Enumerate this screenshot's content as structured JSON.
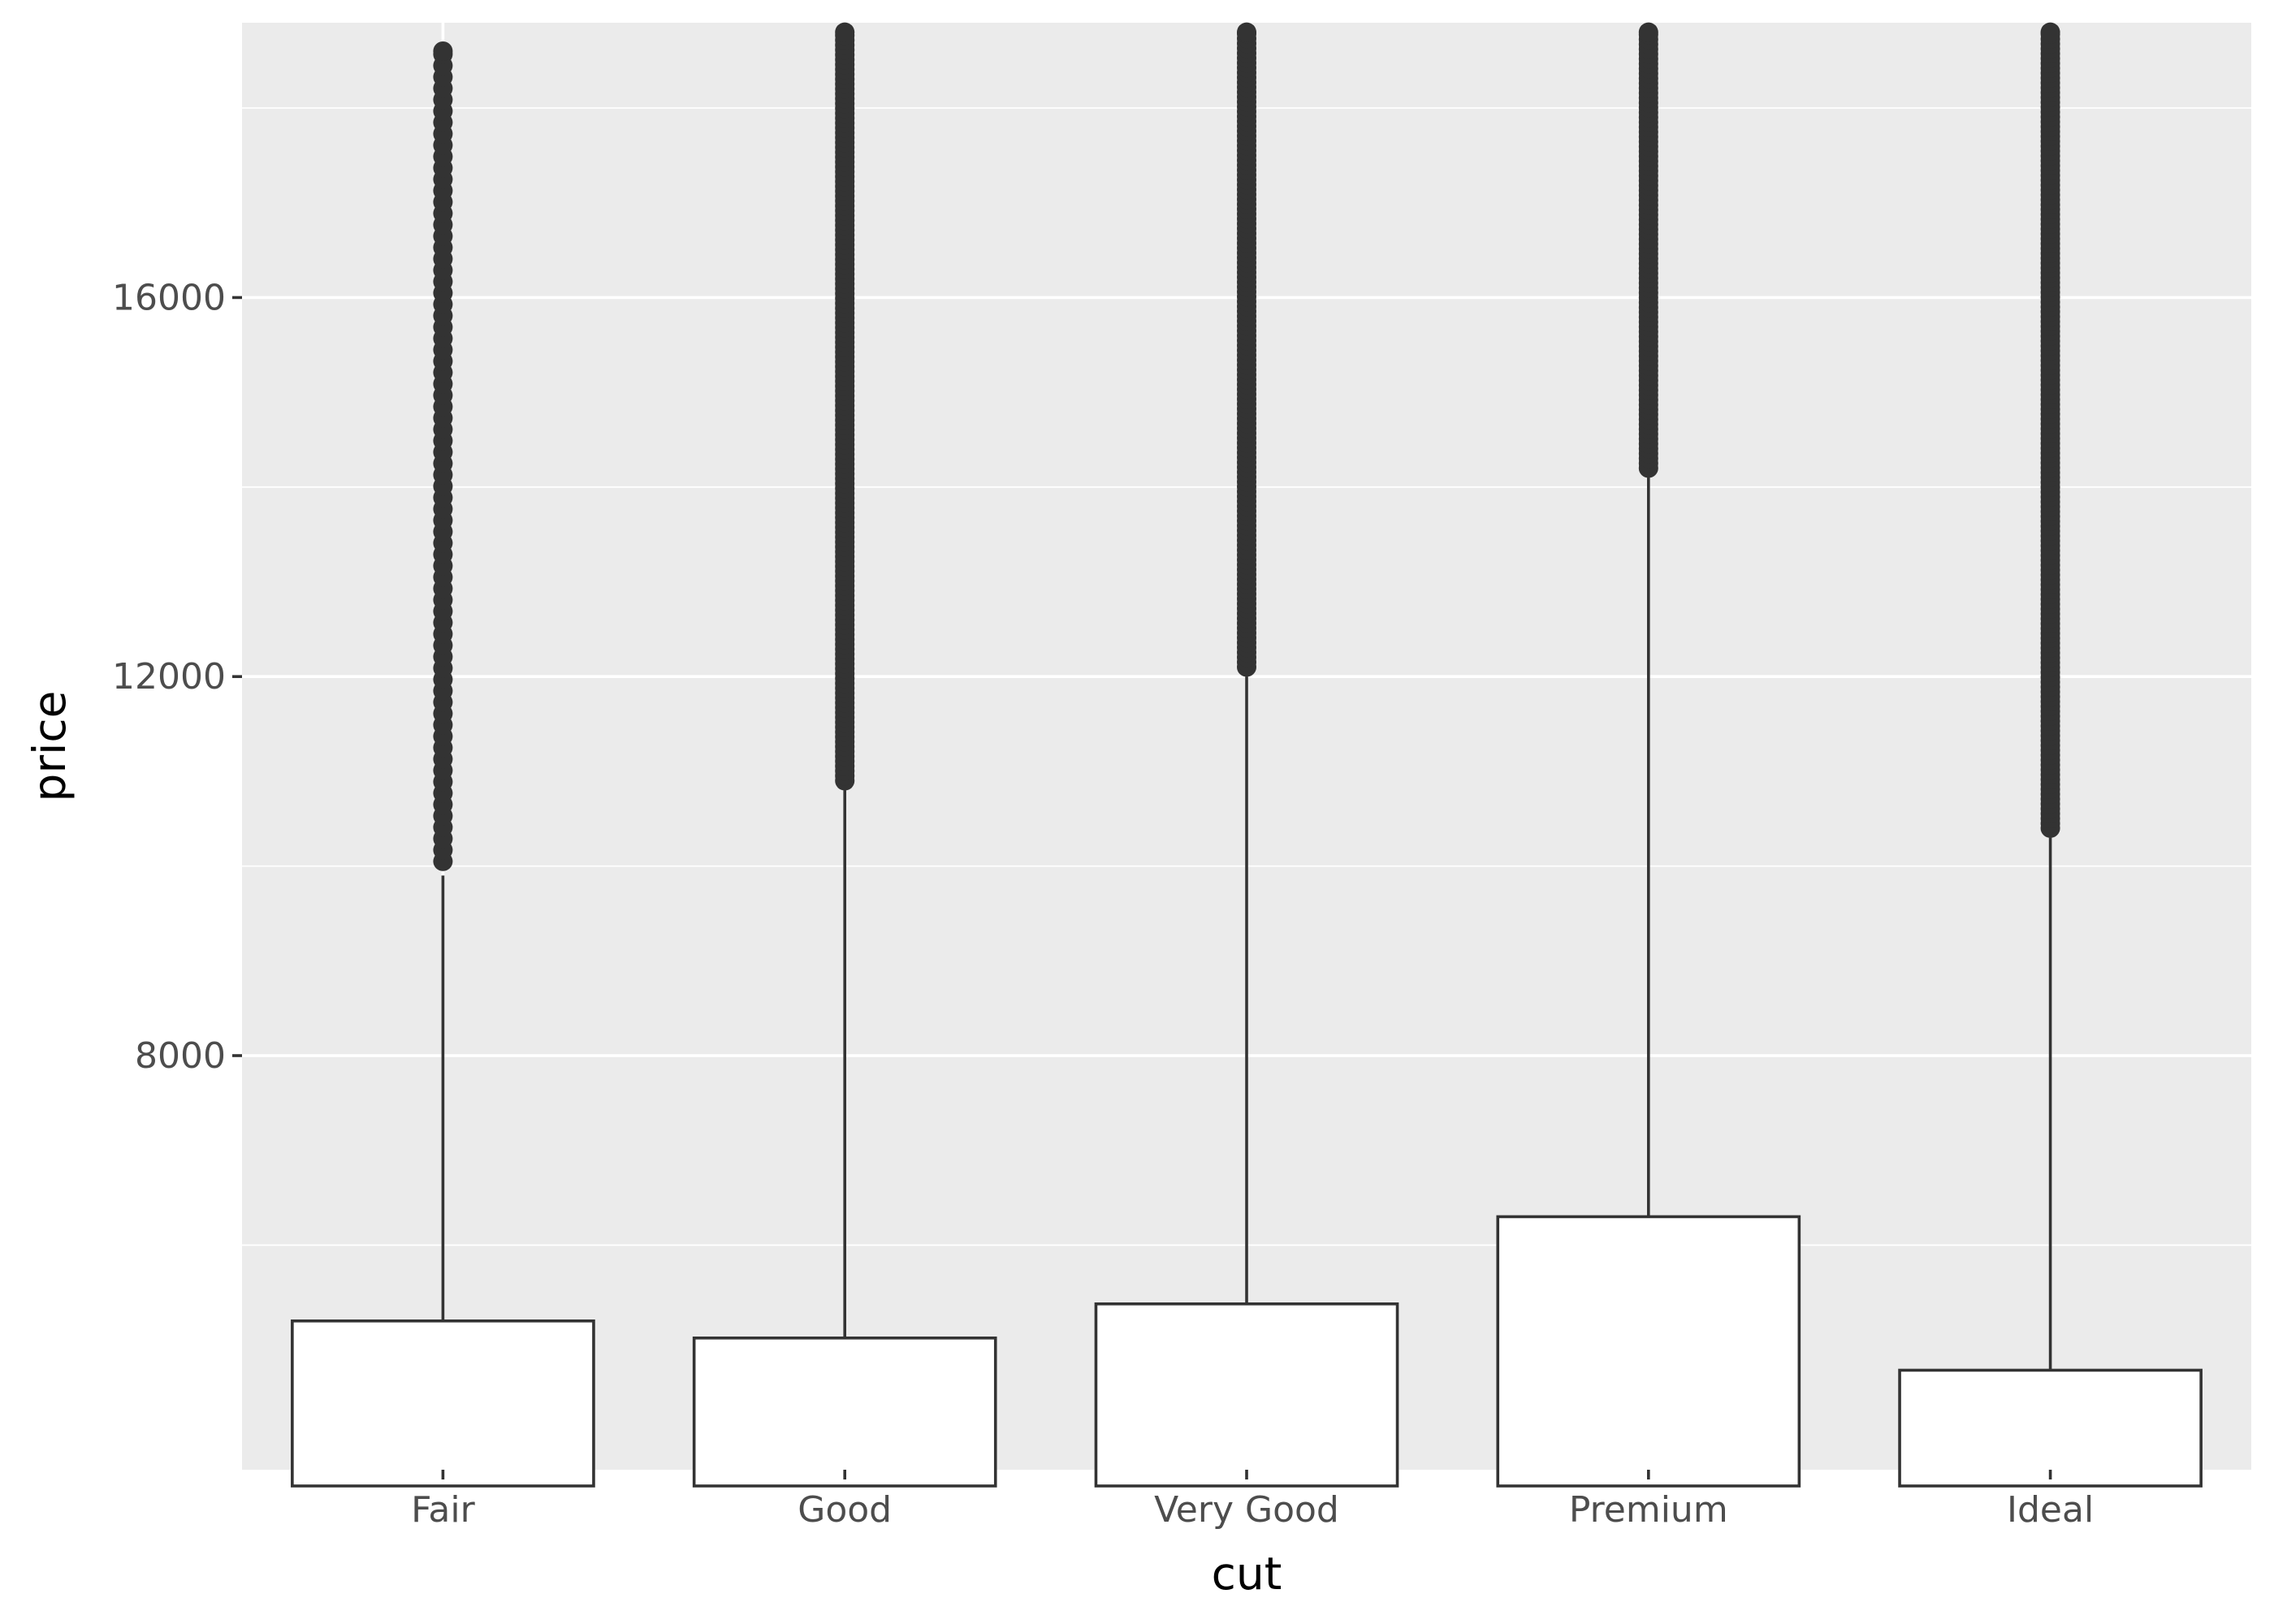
{
  "chart_data": {
    "type": "box",
    "title": "",
    "xlabel": "cut",
    "ylabel": "price",
    "categories": [
      "Fair",
      "Good",
      "Very Good",
      "Premium",
      "Ideal"
    ],
    "ylim": [
      3630,
      18900
    ],
    "y_major_ticks": [
      8000,
      12000,
      16000
    ],
    "y_tick_labels": [
      "8000",
      "12000",
      "16000"
    ],
    "y_minor_ticks": [
      6000,
      10000,
      14000,
      18000
    ],
    "grid": true,
    "legend": "none",
    "colors": {
      "panel": "#ebebeb",
      "grid": "#ffffff",
      "box_fill": "#ffffff",
      "stroke": "#333333",
      "outlier": "#333333"
    },
    "boxes": [
      {
        "category": "Fair",
        "q3": 5200,
        "upper_whisker": 9900,
        "outlier_min": 10050,
        "outlier_max": 18600
      },
      {
        "category": "Good",
        "q3": 5020,
        "upper_whisker": 10800,
        "outlier_min": 10900,
        "outlier_max": 18800
      },
      {
        "category": "Very Good",
        "q3": 5380,
        "upper_whisker": 12000,
        "outlier_min": 12100,
        "outlier_max": 18800
      },
      {
        "category": "Premium",
        "q3": 6300,
        "upper_whisker": 14100,
        "outlier_min": 14200,
        "outlier_max": 18800
      },
      {
        "category": "Ideal",
        "q3": 4680,
        "upper_whisker": 10300,
        "outlier_min": 10400,
        "outlier_max": 18800
      }
    ]
  }
}
